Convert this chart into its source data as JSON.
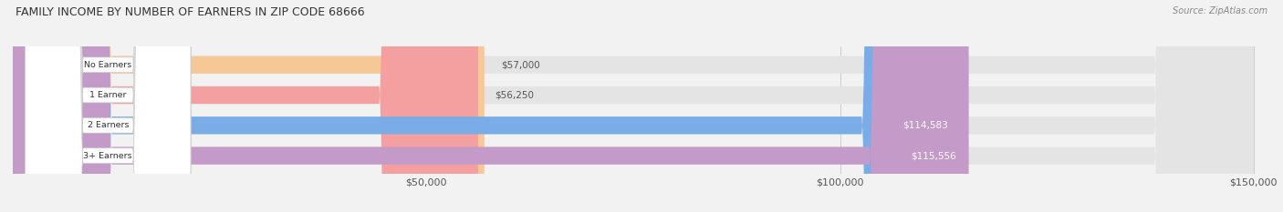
{
  "title": "FAMILY INCOME BY NUMBER OF EARNERS IN ZIP CODE 68666",
  "source": "Source: ZipAtlas.com",
  "categories": [
    "No Earners",
    "1 Earner",
    "2 Earners",
    "3+ Earners"
  ],
  "values": [
    57000,
    56250,
    114583,
    115556
  ],
  "bar_colors": [
    "#f5c896",
    "#f4a0a0",
    "#7aade8",
    "#c49ac8"
  ],
  "label_colors": [
    "#555555",
    "#555555",
    "#ffffff",
    "#ffffff"
  ],
  "value_labels": [
    "$57,000",
    "$56,250",
    "$114,583",
    "$115,556"
  ],
  "xlim_max": 150000,
  "xticks": [
    50000,
    100000,
    150000
  ],
  "xtick_labels": [
    "$50,000",
    "$100,000",
    "$150,000"
  ],
  "background_color": "#f2f2f2",
  "bar_background": "#e4e4e4",
  "title_fontsize": 9,
  "source_fontsize": 7,
  "tick_fontsize": 8,
  "bar_height": 0.58
}
